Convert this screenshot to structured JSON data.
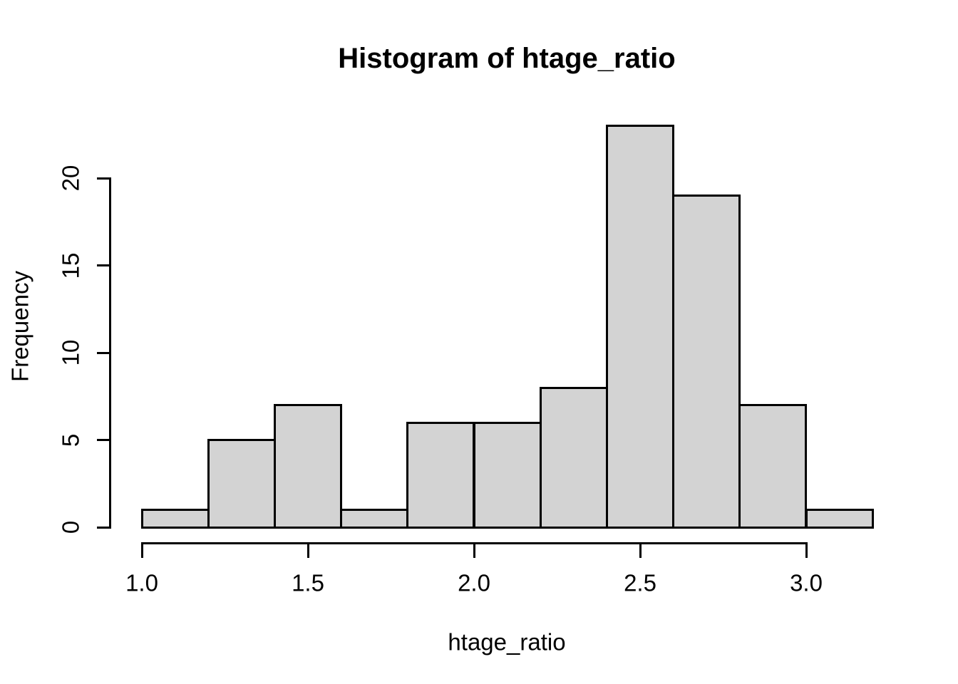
{
  "chart_data": {
    "type": "bar",
    "subtype": "histogram",
    "title": "Histogram of htage_ratio",
    "xlabel": "htage_ratio",
    "ylabel": "Frequency",
    "bin_width": 0.2,
    "bin_edges": [
      1.0,
      1.2,
      1.4,
      1.6,
      1.8,
      2.0,
      2.2,
      2.4,
      2.6,
      2.8,
      3.0,
      3.2
    ],
    "counts": [
      1,
      5,
      7,
      1,
      6,
      6,
      8,
      23,
      19,
      7,
      1
    ],
    "bins": [
      {
        "range": [
          1.0,
          1.2
        ],
        "count": 1
      },
      {
        "range": [
          1.2,
          1.4
        ],
        "count": 5
      },
      {
        "range": [
          1.4,
          1.6
        ],
        "count": 7
      },
      {
        "range": [
          1.6,
          1.8
        ],
        "count": 1
      },
      {
        "range": [
          1.8,
          2.0
        ],
        "count": 6
      },
      {
        "range": [
          2.0,
          2.2
        ],
        "count": 6
      },
      {
        "range": [
          2.2,
          2.4
        ],
        "count": 8
      },
      {
        "range": [
          2.4,
          2.6
        ],
        "count": 23
      },
      {
        "range": [
          2.6,
          2.8
        ],
        "count": 19
      },
      {
        "range": [
          2.8,
          3.0
        ],
        "count": 7
      },
      {
        "range": [
          3.0,
          3.2
        ],
        "count": 1
      }
    ],
    "x_tick_values": [
      1.0,
      1.5,
      2.0,
      2.5,
      3.0
    ],
    "x_tick_labels": [
      "1.0",
      "1.5",
      "2.0",
      "2.5",
      "3.0"
    ],
    "y_tick_values": [
      0,
      5,
      10,
      15,
      20
    ],
    "y_tick_labels": [
      "0",
      "5",
      "10",
      "15",
      "20"
    ],
    "xlim": [
      1.0,
      3.2
    ],
    "ylim": [
      0,
      23
    ],
    "grid": false,
    "legend": "none",
    "colors": {
      "bar_fill": "#D3D3D3",
      "bar_border": "#000000",
      "axis": "#000000",
      "text": "#000000",
      "background": "#FFFFFF"
    }
  }
}
